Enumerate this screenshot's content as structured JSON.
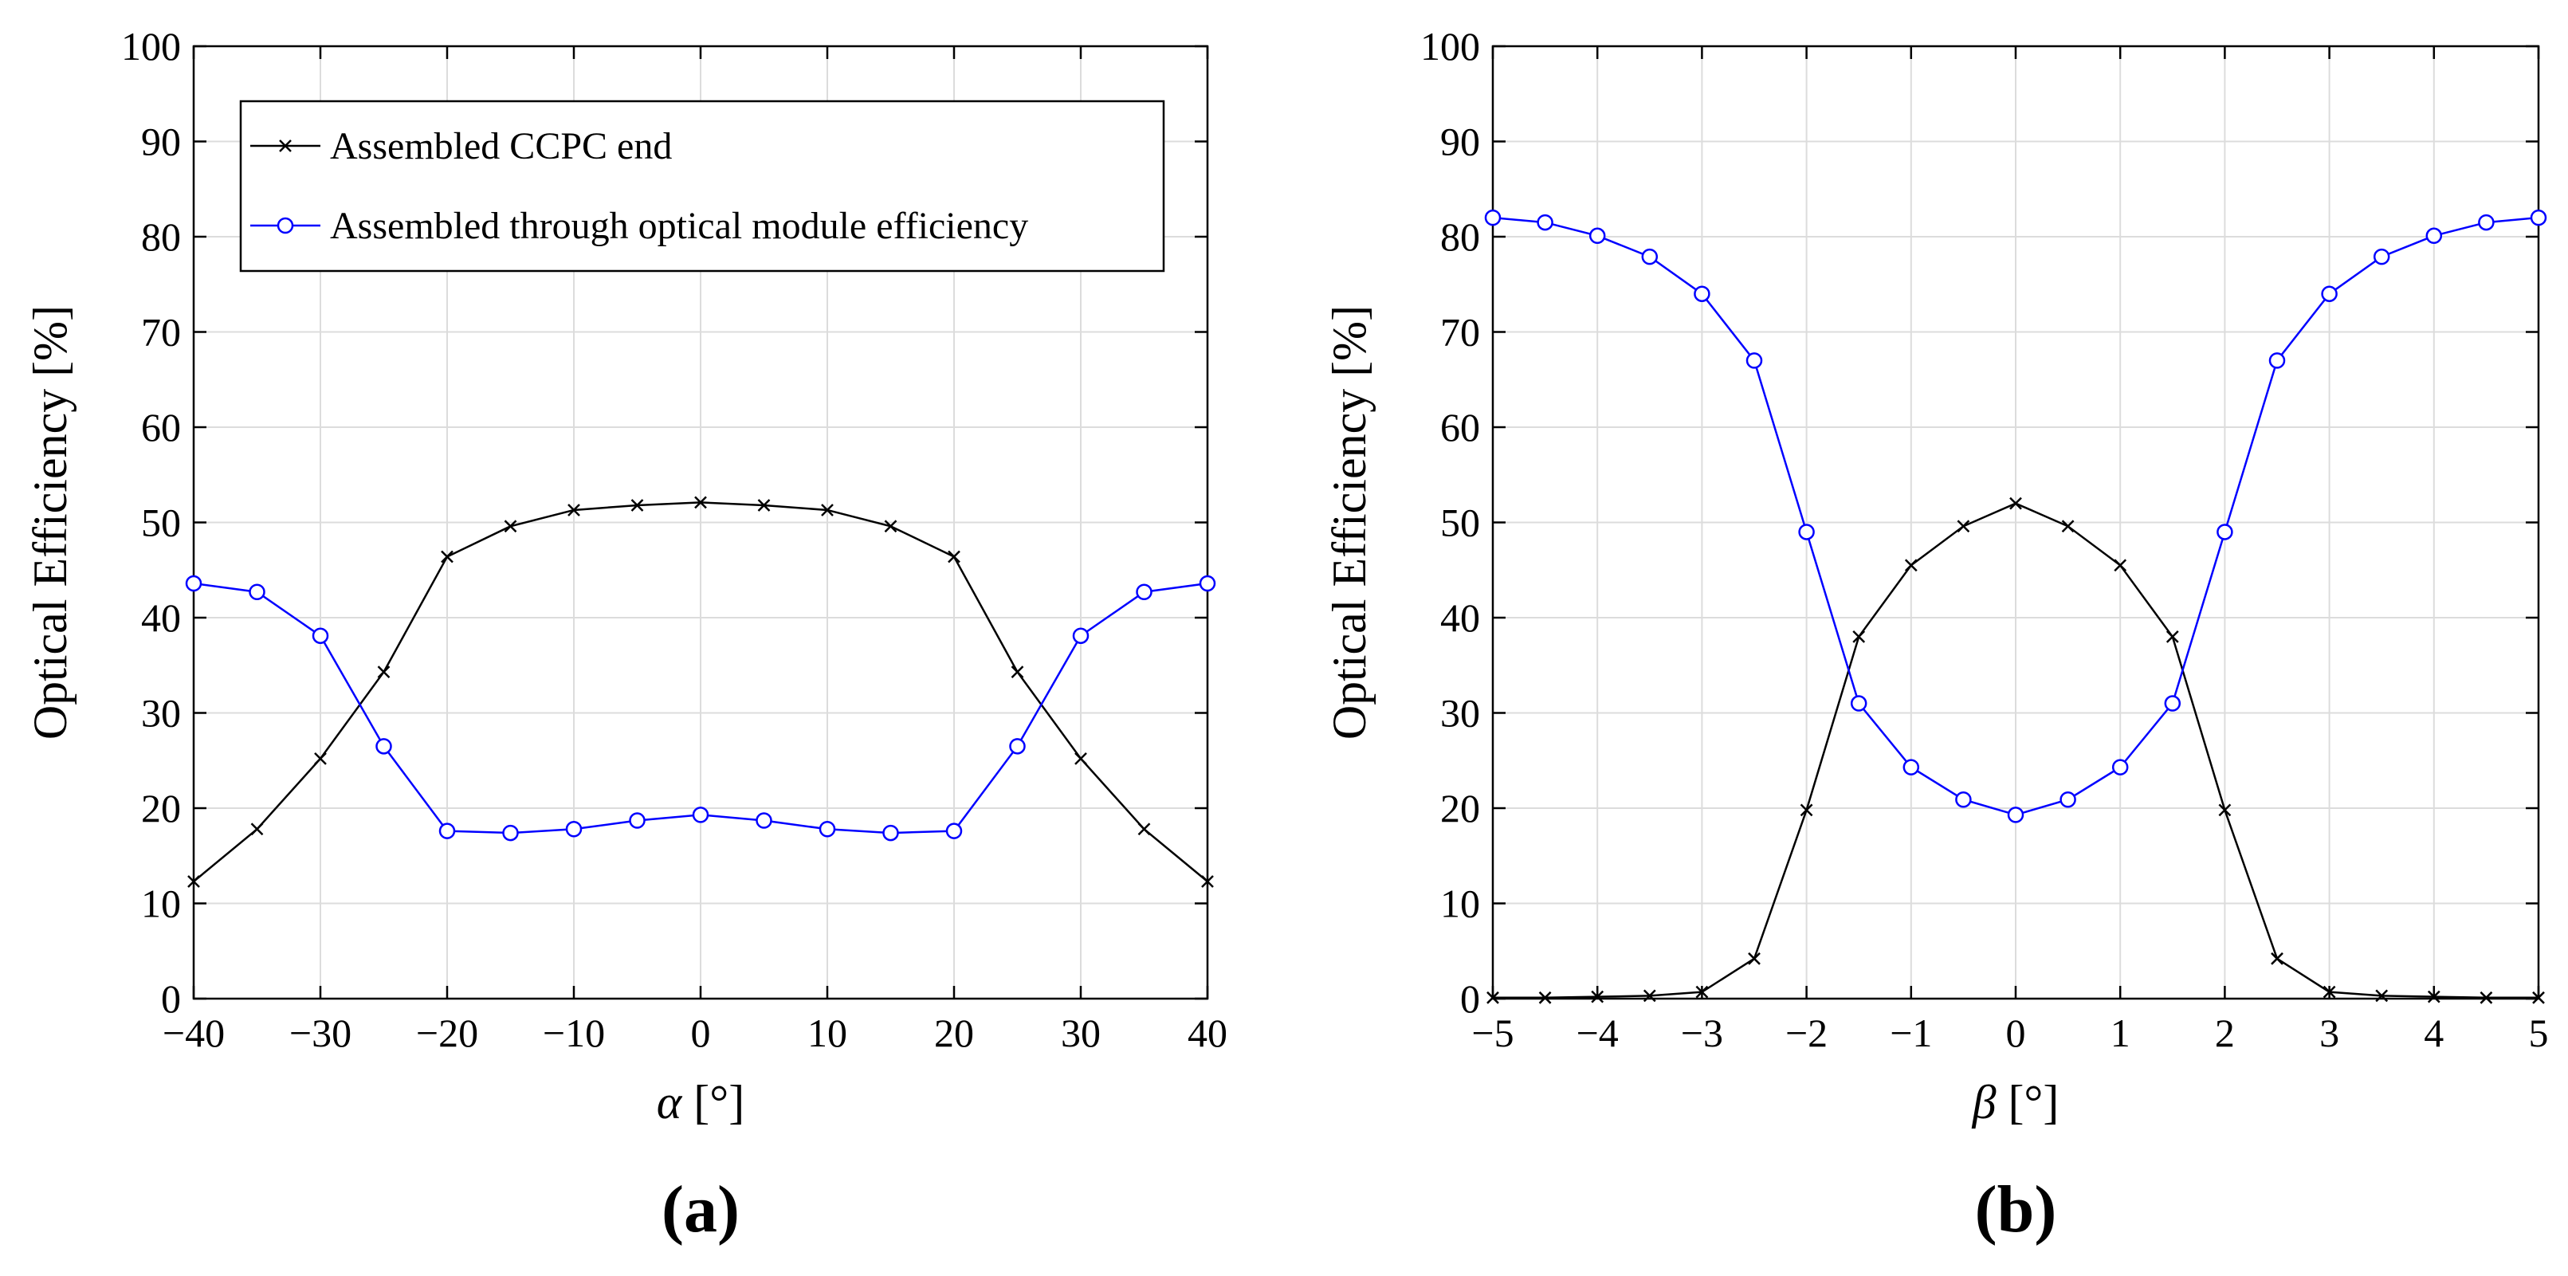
{
  "chart_data": [
    {
      "type": "line",
      "panel_label": "(a)",
      "xlabel_symbol": "α",
      "xlabel_unit": " [°]",
      "ylabel": "Optical Efficiency [%]",
      "xlim": [
        -40,
        40
      ],
      "ylim": [
        0,
        100
      ],
      "xticks": [
        -40,
        -30,
        -20,
        -10,
        0,
        10,
        20,
        30,
        40
      ],
      "xtick_labels": [
        "−40",
        "−30",
        "−20",
        "−10",
        "0",
        "10",
        "20",
        "30",
        "40"
      ],
      "yticks": [
        0,
        10,
        20,
        30,
        40,
        50,
        60,
        70,
        80,
        90,
        100
      ],
      "ytick_labels": [
        "0",
        "10",
        "20",
        "30",
        "40",
        "50",
        "60",
        "70",
        "80",
        "90",
        "100"
      ],
      "grid": true,
      "legend": {
        "position": "top-left",
        "entries": [
          "Assembled CCPC end",
          "Assembled through optical module efficiency"
        ]
      },
      "x": [
        -40,
        -35,
        -30,
        -25,
        -20,
        -15,
        -10,
        -5,
        0,
        5,
        10,
        15,
        20,
        25,
        30,
        35,
        40
      ],
      "series": [
        {
          "name": "Assembled CCPC end",
          "color": "#000000",
          "marker": "x",
          "values": [
            12.3,
            17.8,
            25.2,
            34.3,
            46.4,
            49.6,
            51.3,
            51.8,
            52.1,
            51.8,
            51.3,
            49.6,
            46.4,
            34.3,
            25.2,
            17.8,
            12.3
          ]
        },
        {
          "name": "Assembled through optical module efficiency",
          "color": "#0000ff",
          "marker": "o",
          "values": [
            43.6,
            42.7,
            38.1,
            26.5,
            17.6,
            17.4,
            17.8,
            18.7,
            19.3,
            18.7,
            17.8,
            17.4,
            17.6,
            26.5,
            38.1,
            42.7,
            43.6
          ]
        }
      ]
    },
    {
      "type": "line",
      "panel_label": "(b)",
      "xlabel_symbol": "β",
      "xlabel_unit": " [°]",
      "ylabel": "Optical Efficiency [%]",
      "xlim": [
        -5,
        5
      ],
      "ylim": [
        0,
        100
      ],
      "xticks": [
        -5,
        -4,
        -3,
        -2,
        -1,
        0,
        1,
        2,
        3,
        4,
        5
      ],
      "xtick_labels": [
        "−5",
        "−4",
        "−3",
        "−2",
        "−1",
        "0",
        "1",
        "2",
        "3",
        "4",
        "5"
      ],
      "yticks": [
        0,
        10,
        20,
        30,
        40,
        50,
        60,
        70,
        80,
        90,
        100
      ],
      "ytick_labels": [
        "0",
        "10",
        "20",
        "30",
        "40",
        "50",
        "60",
        "70",
        "80",
        "90",
        "100"
      ],
      "grid": true,
      "x": [
        -5,
        -4.5,
        -4,
        -3.5,
        -3,
        -2.5,
        -2,
        -1.5,
        -1,
        -0.5,
        0,
        0.5,
        1,
        1.5,
        2,
        2.5,
        3,
        3.5,
        4,
        4.5,
        5
      ],
      "series": [
        {
          "name": "Assembled CCPC end",
          "color": "#000000",
          "marker": "x",
          "values": [
            0.1,
            0.1,
            0.2,
            0.3,
            0.7,
            4.2,
            19.8,
            38.0,
            45.5,
            49.6,
            52.0,
            49.6,
            45.5,
            38.0,
            19.8,
            4.2,
            0.7,
            0.3,
            0.2,
            0.1,
            0.1
          ]
        },
        {
          "name": "Assembled through optical module efficiency",
          "color": "#0000ff",
          "marker": "o",
          "values": [
            82.0,
            81.5,
            80.1,
            77.9,
            74.0,
            67.0,
            49.0,
            31.0,
            24.3,
            20.9,
            19.3,
            20.9,
            24.3,
            31.0,
            49.0,
            67.0,
            74.0,
            77.9,
            80.1,
            81.5,
            82.0
          ]
        }
      ]
    }
  ]
}
